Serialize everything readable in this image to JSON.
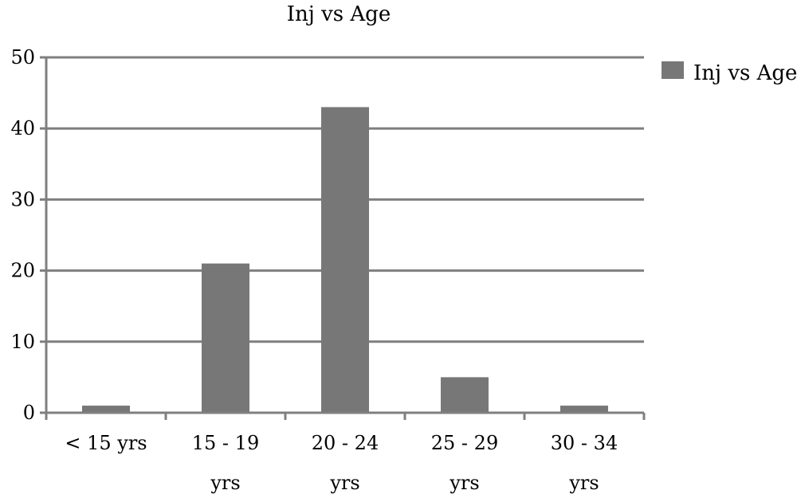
{
  "chart_data": {
    "type": "bar",
    "title": "Inj vs Age",
    "categories": [
      "< 15 yrs",
      "15 - 19 yrs",
      "20 - 24 yrs",
      "25 - 29 yrs",
      "30 - 34 yrs"
    ],
    "category_lines": [
      [
        "< 15 yrs"
      ],
      [
        "15 - 19",
        "yrs"
      ],
      [
        "20 - 24",
        "yrs"
      ],
      [
        "25 - 29",
        "yrs"
      ],
      [
        "30 - 34",
        "yrs"
      ]
    ],
    "series": [
      {
        "name": "Inj vs Age",
        "values": [
          1,
          21,
          43,
          5,
          1
        ],
        "color": "#777777"
      }
    ],
    "xlabel": "",
    "ylabel": "",
    "ylim": [
      0,
      50
    ],
    "yticks": [
      0,
      10,
      20,
      30,
      40,
      50
    ],
    "grid": true,
    "legend_position": "right",
    "colors": {
      "bar": "#777777",
      "grid": "#7f7f7f",
      "axis": "#7f7f7f"
    }
  }
}
